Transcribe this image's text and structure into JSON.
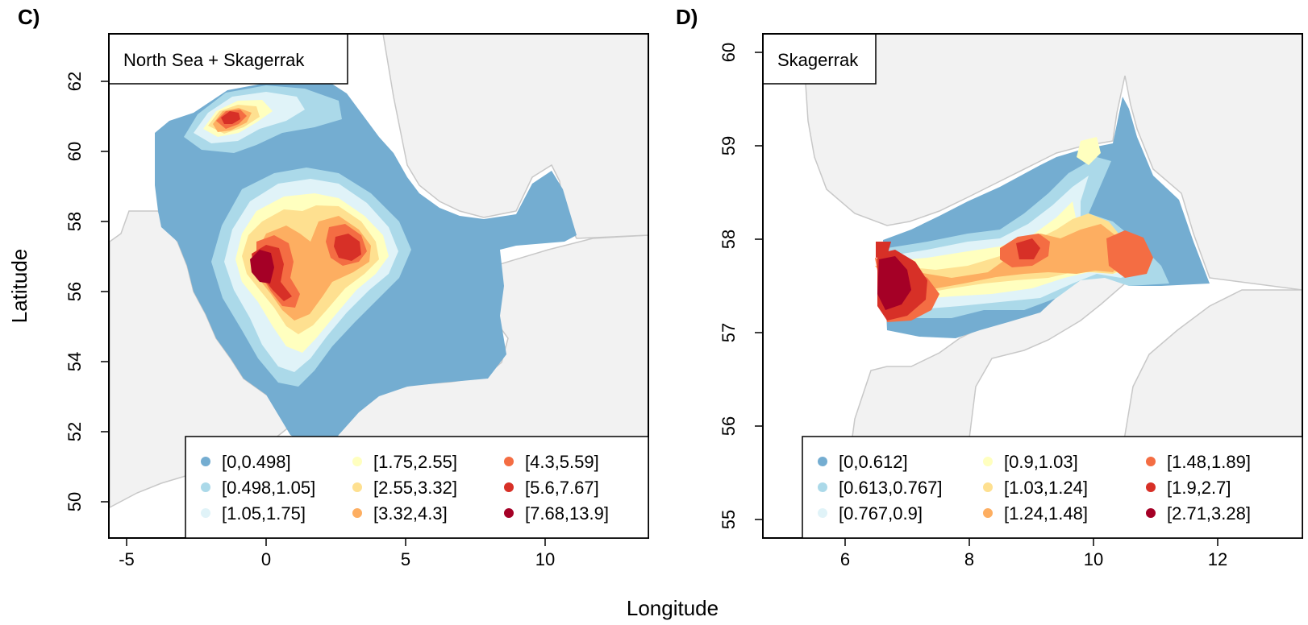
{
  "figure": {
    "xlabel": "Longitude",
    "ylabel": "Latitude"
  },
  "colors": {
    "bins": [
      "#74add1",
      "#abd9e9",
      "#e0f3f8",
      "#ffffbf",
      "#fee090",
      "#fdae61",
      "#f46d43",
      "#d73027",
      "#a50026"
    ],
    "land": "#f2f2f2",
    "coast": "#c8c8c8"
  },
  "panels": [
    {
      "label": "C)",
      "title": "North Sea + Skagerrak",
      "x_ticks": [
        "-5",
        "0",
        "5",
        "10"
      ],
      "y_ticks": [
        "50",
        "52",
        "54",
        "56",
        "58",
        "60",
        "62"
      ],
      "xlim": [
        -5.8,
        13.8
      ],
      "ylim": [
        48.9,
        63.4
      ],
      "legend": [
        "[0,0.498]",
        "[0.498,1.05]",
        "[1.05,1.75]",
        "[1.75,2.55]",
        "[2.55,3.32]",
        "[3.32,4.3]",
        "[4.3,5.59]",
        "[5.6,7.67]",
        "[7.68,13.9]"
      ],
      "hotspots": [
        {
          "lon": -0.5,
          "lat": 56.3,
          "peak_bin": 8
        },
        {
          "lon": 3.2,
          "lat": 57.2,
          "peak_bin": 7
        },
        {
          "lon": -1.3,
          "lat": 61.1,
          "peak_bin": 7
        }
      ]
    },
    {
      "label": "D)",
      "title": "Skagerrak",
      "x_ticks": [
        "6",
        "8",
        "10",
        "12"
      ],
      "y_ticks": [
        "55",
        "56",
        "57",
        "58",
        "59",
        "60"
      ],
      "xlim": [
        4.7,
        13.45
      ],
      "ylim": [
        54.8,
        60.2
      ],
      "legend": [
        "[0,0.612]",
        "[0.613,0.767]",
        "[0.767,0.9]",
        "[0.9,1.03]",
        "[1.03,1.24]",
        "[1.24,1.48]",
        "[1.48,1.89]",
        "[1.9,2.7]",
        "[2.71,3.28]"
      ],
      "hotspots": [
        {
          "lon": 6.9,
          "lat": 57.5,
          "peak_bin": 8
        },
        {
          "lon": 9.1,
          "lat": 57.9,
          "peak_bin": 6
        },
        {
          "lon": 10.7,
          "lat": 57.8,
          "peak_bin": 6
        }
      ]
    }
  ]
}
